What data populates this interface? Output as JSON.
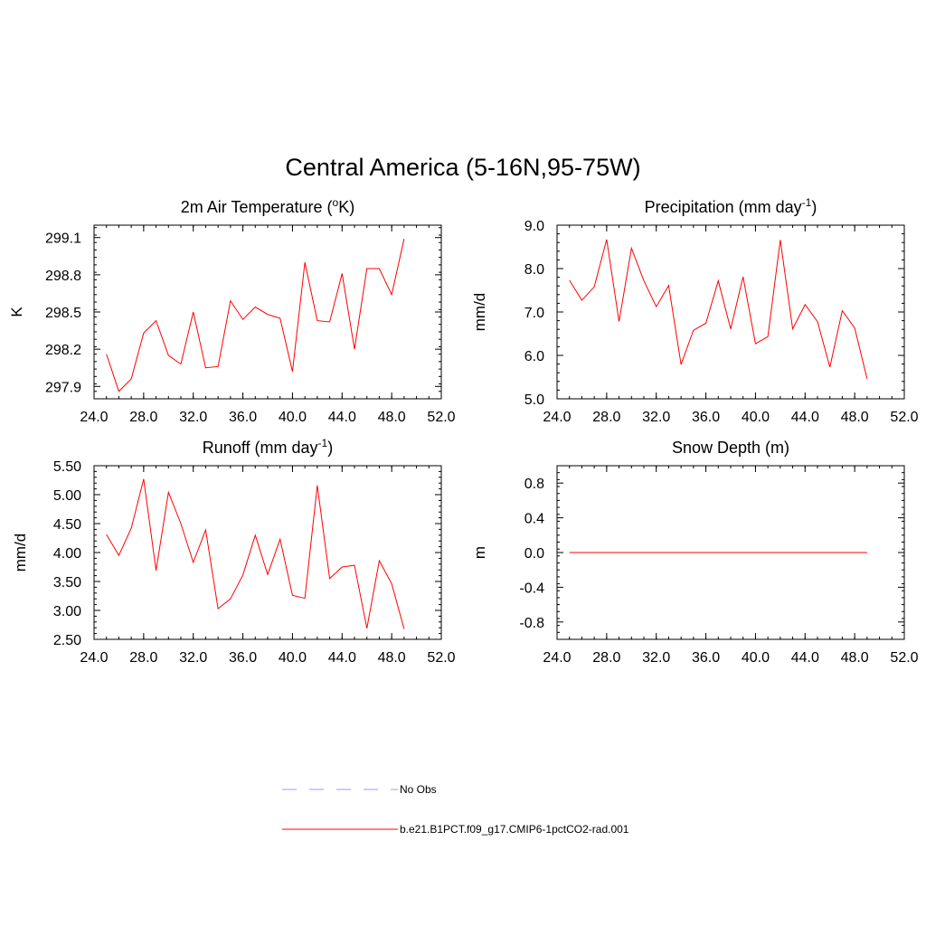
{
  "title": "Central America (5-16N,95-75W)",
  "colors": {
    "model": "#ff0000",
    "obs": "#9999ff"
  },
  "legend": {
    "position": "bottom-center",
    "items": [
      {
        "label": "No Obs",
        "color": "#9999ff",
        "style": "dashed"
      },
      {
        "label": "b.e21.B1PCT.f09_g17.CMIP6-1pctCO2-rad.001",
        "color": "#ff0000",
        "style": "solid"
      }
    ]
  },
  "chart_data": [
    {
      "type": "line",
      "title": "2m Air Temperature (",
      "title_sup": "o",
      "title_after": "K)",
      "ylabel": "K",
      "xlim": [
        24,
        52
      ],
      "ylim": [
        297.8,
        299.2
      ],
      "xticks": [
        24,
        28,
        32,
        36,
        40,
        44,
        48,
        52
      ],
      "xtick_labels": [
        "24.0",
        "28.0",
        "32.0",
        "36.0",
        "40.0",
        "44.0",
        "48.0",
        "52.0"
      ],
      "xminor": 1,
      "yticks": [
        297.9,
        298.2,
        298.5,
        298.8,
        299.1
      ],
      "ytick_labels": [
        "297.9",
        "298.2",
        "298.5",
        "298.8",
        "299.1"
      ],
      "yminor": 0.06,
      "series": [
        {
          "x": [
            25,
            26,
            27,
            28,
            29,
            30,
            31,
            32,
            33,
            34,
            35,
            36,
            37,
            38,
            39,
            40,
            41,
            42,
            43,
            44,
            45,
            46,
            47,
            48,
            49
          ],
          "values": [
            298.16,
            297.86,
            297.96,
            298.33,
            298.43,
            298.15,
            298.08,
            298.5,
            298.05,
            298.06,
            298.59,
            298.44,
            298.54,
            298.48,
            298.45,
            298.02,
            298.9,
            298.43,
            298.42,
            298.81,
            298.2,
            298.85,
            298.85,
            298.64,
            299.09
          ],
          "color": "#ff0000"
        }
      ]
    },
    {
      "type": "line",
      "title": "Precipitation (mm day",
      "title_sup": "-1",
      "title_after": ")",
      "ylabel": "mm/d",
      "xlim": [
        24,
        52
      ],
      "ylim": [
        5.0,
        9.0
      ],
      "xticks": [
        24,
        28,
        32,
        36,
        40,
        44,
        48,
        52
      ],
      "xtick_labels": [
        "24.0",
        "28.0",
        "32.0",
        "36.0",
        "40.0",
        "44.0",
        "48.0",
        "52.0"
      ],
      "xminor": 1,
      "yticks": [
        5.0,
        6.0,
        7.0,
        8.0,
        9.0
      ],
      "ytick_labels": [
        "5.0",
        "6.0",
        "7.0",
        "8.0",
        "9.0"
      ],
      "yminor": 0.2,
      "series": [
        {
          "x": [
            25,
            26,
            27,
            28,
            29,
            30,
            31,
            32,
            33,
            34,
            35,
            36,
            37,
            38,
            39,
            40,
            41,
            42,
            43,
            44,
            45,
            46,
            47,
            48,
            49
          ],
          "values": [
            7.73,
            7.27,
            7.58,
            8.67,
            6.78,
            8.47,
            7.72,
            7.12,
            7.61,
            5.79,
            6.58,
            6.74,
            7.72,
            6.61,
            7.81,
            6.27,
            6.43,
            8.66,
            6.61,
            7.17,
            6.78,
            5.73,
            7.03,
            6.63,
            5.46
          ],
          "color": "#ff0000"
        }
      ]
    },
    {
      "type": "line",
      "title": "Runoff (mm day",
      "title_sup": "-1",
      "title_after": ")",
      "ylabel": "mm/d",
      "xlim": [
        24,
        52
      ],
      "ylim": [
        2.5,
        5.5
      ],
      "xticks": [
        24,
        28,
        32,
        36,
        40,
        44,
        48,
        52
      ],
      "xtick_labels": [
        "24.0",
        "28.0",
        "32.0",
        "36.0",
        "40.0",
        "44.0",
        "48.0",
        "52.0"
      ],
      "xminor": 1,
      "yticks": [
        2.5,
        3.0,
        3.5,
        4.0,
        4.5,
        5.0,
        5.5
      ],
      "ytick_labels": [
        "2.50",
        "3.00",
        "3.50",
        "4.00",
        "4.50",
        "5.00",
        "5.50"
      ],
      "yminor": 0.1,
      "series": [
        {
          "x": [
            25,
            26,
            27,
            28,
            29,
            30,
            31,
            32,
            33,
            34,
            35,
            36,
            37,
            38,
            39,
            40,
            41,
            42,
            43,
            44,
            45,
            46,
            47,
            48,
            49
          ],
          "values": [
            4.31,
            3.95,
            4.42,
            5.27,
            3.69,
            5.04,
            4.5,
            3.83,
            4.39,
            3.03,
            3.2,
            3.61,
            4.3,
            3.62,
            4.23,
            3.26,
            3.21,
            5.16,
            3.55,
            3.75,
            3.78,
            2.69,
            3.86,
            3.46,
            2.68
          ],
          "color": "#ff0000"
        }
      ]
    },
    {
      "type": "line",
      "title": "Snow Depth (m)",
      "title_sup": "",
      "title_after": "",
      "ylabel": "m",
      "xlim": [
        24,
        52
      ],
      "ylim": [
        -1.0,
        1.0
      ],
      "xticks": [
        24,
        28,
        32,
        36,
        40,
        44,
        48,
        52
      ],
      "xtick_labels": [
        "24.0",
        "28.0",
        "32.0",
        "36.0",
        "40.0",
        "44.0",
        "48.0",
        "52.0"
      ],
      "xminor": 1,
      "yticks": [
        -0.8,
        -0.4,
        0.0,
        0.4,
        0.8
      ],
      "ytick_labels": [
        "-0.8",
        "-0.4",
        "0.0",
        "0.4",
        "0.8"
      ],
      "yminor": 0.08,
      "series": [
        {
          "x": [
            25,
            49
          ],
          "values": [
            0.0,
            0.0
          ],
          "color": "#ff0000"
        }
      ]
    }
  ]
}
